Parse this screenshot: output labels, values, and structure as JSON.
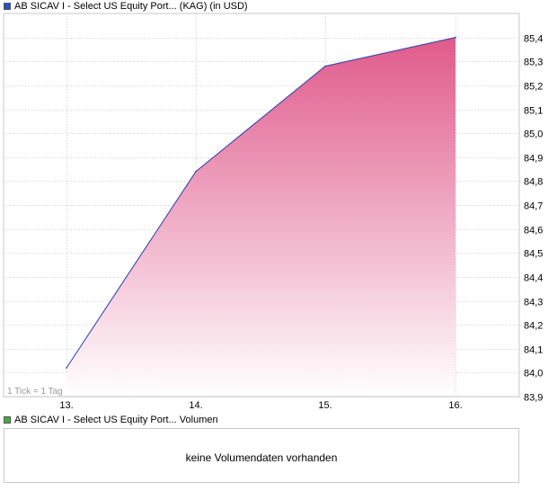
{
  "price_legend": {
    "label": "AB SICAV I - Select US Equity Port... (KAG) (in USD)",
    "color": "#2255cc"
  },
  "volume_legend": {
    "label": "AB SICAV I - Select US Equity Port... Volumen",
    "color": "#44aa44"
  },
  "tick_note": "1 Tick = 1 Tag",
  "volume_message": "keine Volumendaten vorhanden",
  "colors": {
    "line": "#2a3fa8",
    "area_top": "#e05a8c",
    "area_bottom": "#ffffff",
    "grid": "#d0d0d0"
  },
  "chart_data": {
    "type": "area",
    "x": [
      "13.",
      "14.",
      "15.",
      "16."
    ],
    "series": [
      {
        "values": [
          84.02,
          84.84,
          85.28,
          85.4
        ]
      }
    ],
    "ylim": [
      83.9,
      85.5
    ],
    "yticks": [
      "83,9",
      "84,0",
      "84,1",
      "84,2",
      "84,3",
      "84,4",
      "84,5",
      "84,6",
      "84,7",
      "84,8",
      "84,9",
      "85,0",
      "85,1",
      "85,2",
      "85,3",
      "85,4"
    ],
    "ytick_values": [
      83.9,
      84.0,
      84.1,
      84.2,
      84.3,
      84.4,
      84.5,
      84.6,
      84.7,
      84.8,
      84.9,
      85.0,
      85.1,
      85.2,
      85.3,
      85.4
    ],
    "grid": true,
    "y_axis_side": "right"
  }
}
